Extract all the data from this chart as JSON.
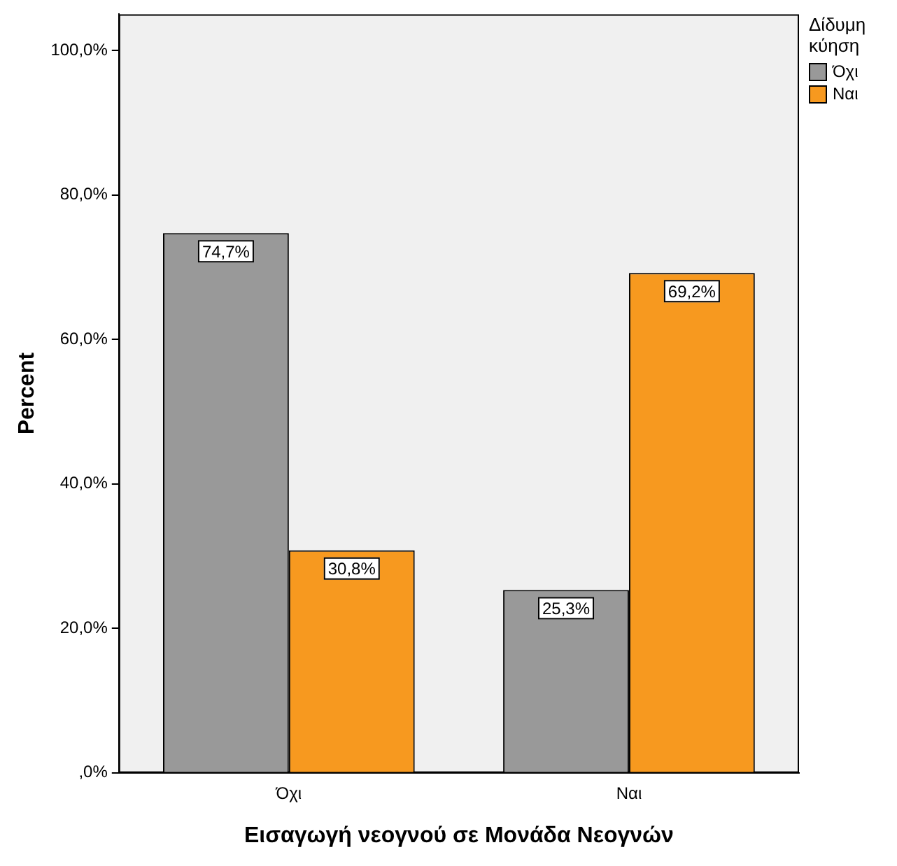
{
  "chart_data": {
    "type": "bar",
    "xlabel": "Εισαγωγή νεογνού σε Μονάδα Νεογνών",
    "ylabel": "Percent",
    "legend_title": "Δίδυμη κύηση",
    "legend": "top right",
    "categories": [
      "Όχι",
      "Ναι"
    ],
    "series": [
      {
        "name": "Όχι",
        "color": "#999999",
        "values": [
          74.7,
          25.3
        ],
        "value_labels": [
          "74,7%",
          "25,3%"
        ]
      },
      {
        "name": "Ναι",
        "color": "#f7991f",
        "values": [
          30.8,
          69.2
        ],
        "value_labels": [
          "30,8%",
          "69,2%"
        ]
      }
    ],
    "ylim": [
      0,
      105
    ],
    "yticks": [
      {
        "value": 0,
        "label": ",0%"
      },
      {
        "value": 20,
        "label": "20,0%"
      },
      {
        "value": 40,
        "label": "40,0%"
      },
      {
        "value": 60,
        "label": "60,0%"
      },
      {
        "value": 80,
        "label": "80,0%"
      },
      {
        "value": 100,
        "label": "100,0%"
      }
    ],
    "grid": false
  }
}
